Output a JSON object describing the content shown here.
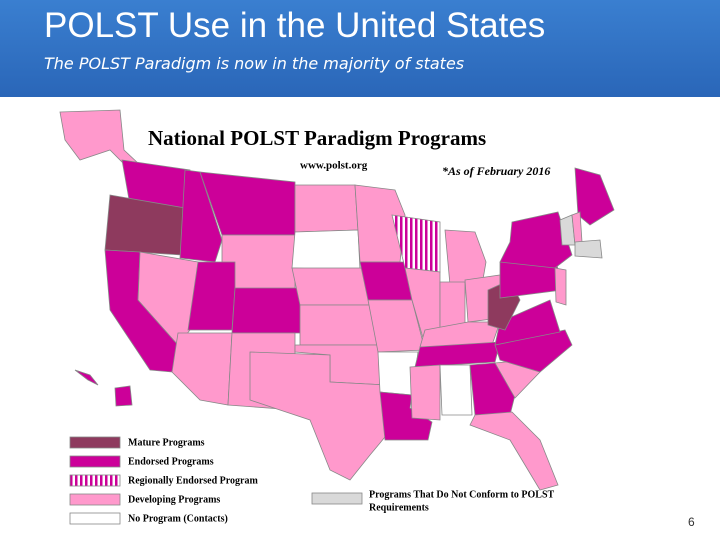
{
  "header": {
    "title": "POLST Use in the United States",
    "subtitle": "The POLST Paradigm is now in the majority of states"
  },
  "map": {
    "title": "National POLST Paradigm Programs",
    "website": "www.polst.org",
    "date_note": "*As of February 2016",
    "legend": [
      "Mature Programs",
      "Endorsed Programs",
      "Regionally Endorsed Program",
      "Developing Programs",
      "No Program (Contacts)"
    ],
    "nonconforming_legend": [
      "Programs That Do Not Conform to POLST",
      "Requirements"
    ]
  },
  "footer": {
    "page_number": "6"
  }
}
